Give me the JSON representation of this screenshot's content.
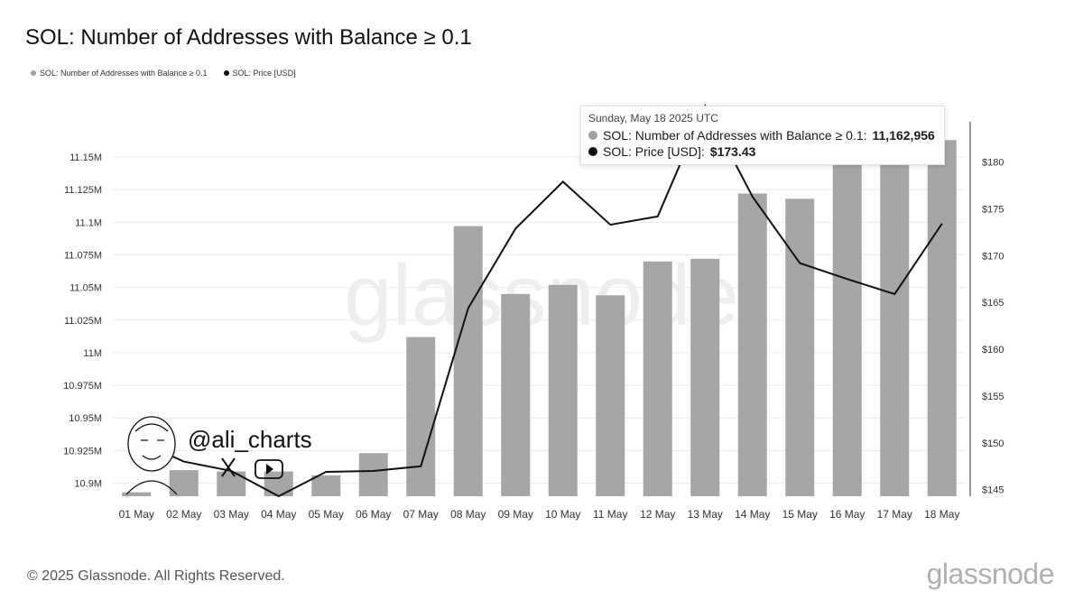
{
  "title": "SOL: Number of Addresses with Balance ≥ 0.1",
  "legend": [
    {
      "label": "SOL: Number of Addresses with Balance ≥ 0.1",
      "color": "#a0a0a0"
    },
    {
      "label": "SOL: Price [USD]",
      "color": "#111111"
    }
  ],
  "tooltip": {
    "date": "Sunday, May 18 2025 UTC",
    "row1_label": "SOL: Number of Addresses with Balance ≥ 0.1:",
    "row1_value": "11,162,956",
    "row2_label": "SOL: Price [USD]:",
    "row2_value": "$173.43"
  },
  "watermark": {
    "text": "glassnode",
    "handle": "@ali_charts"
  },
  "footer": {
    "copyright": "© 2025 Glassnode. All Rights Reserved.",
    "logo": "glassnode"
  },
  "chart_data": {
    "type": "bar",
    "title": "SOL: Number of Addresses with Balance ≥ 0.1",
    "categories": [
      "01 May",
      "02 May",
      "03 May",
      "04 May",
      "05 May",
      "06 May",
      "07 May",
      "08 May",
      "09 May",
      "10 May",
      "11 May",
      "12 May",
      "13 May",
      "14 May",
      "15 May",
      "16 May",
      "17 May",
      "18 May"
    ],
    "series": [
      {
        "name": "SOL: Number of Addresses with Balance ≥ 0.1",
        "type": "bar",
        "axis": "left",
        "color": "#a6a6a6",
        "values": [
          10.893,
          10.91,
          10.909,
          10.909,
          10.906,
          10.923,
          11.012,
          11.097,
          11.045,
          11.052,
          11.044,
          11.07,
          11.072,
          11.122,
          11.118,
          11.155,
          11.152,
          11.163
        ]
      },
      {
        "name": "SOL: Price [USD]",
        "type": "line",
        "axis": "right",
        "color": "#111111",
        "values": [
          150.3,
          148.0,
          147.0,
          144.3,
          146.9,
          147.0,
          147.5,
          164.4,
          172.9,
          177.9,
          173.3,
          174.2,
          186.0,
          176.3,
          169.2,
          167.5,
          165.9,
          173.43
        ]
      }
    ],
    "y_left": {
      "ticks": [
        "10.9M",
        "10.925M",
        "10.95M",
        "10.975M",
        "11M",
        "11.025M",
        "11.05M",
        "11.075M",
        "11.1M",
        "11.125M",
        "11.15M"
      ],
      "tick_values": [
        10.9,
        10.925,
        10.95,
        10.975,
        11.0,
        11.025,
        11.05,
        11.075,
        11.1,
        11.125,
        11.15
      ],
      "unit": "M",
      "range": [
        10.89,
        11.177
      ]
    },
    "y_right": {
      "ticks": [
        "$145",
        "$150",
        "$155",
        "$160",
        "$165",
        "$170",
        "$175",
        "$180"
      ],
      "tick_values": [
        145,
        150,
        155,
        160,
        165,
        170,
        175,
        180
      ],
      "range": [
        144.3,
        184.3
      ]
    },
    "grid": true,
    "legend_position": "top-left"
  }
}
